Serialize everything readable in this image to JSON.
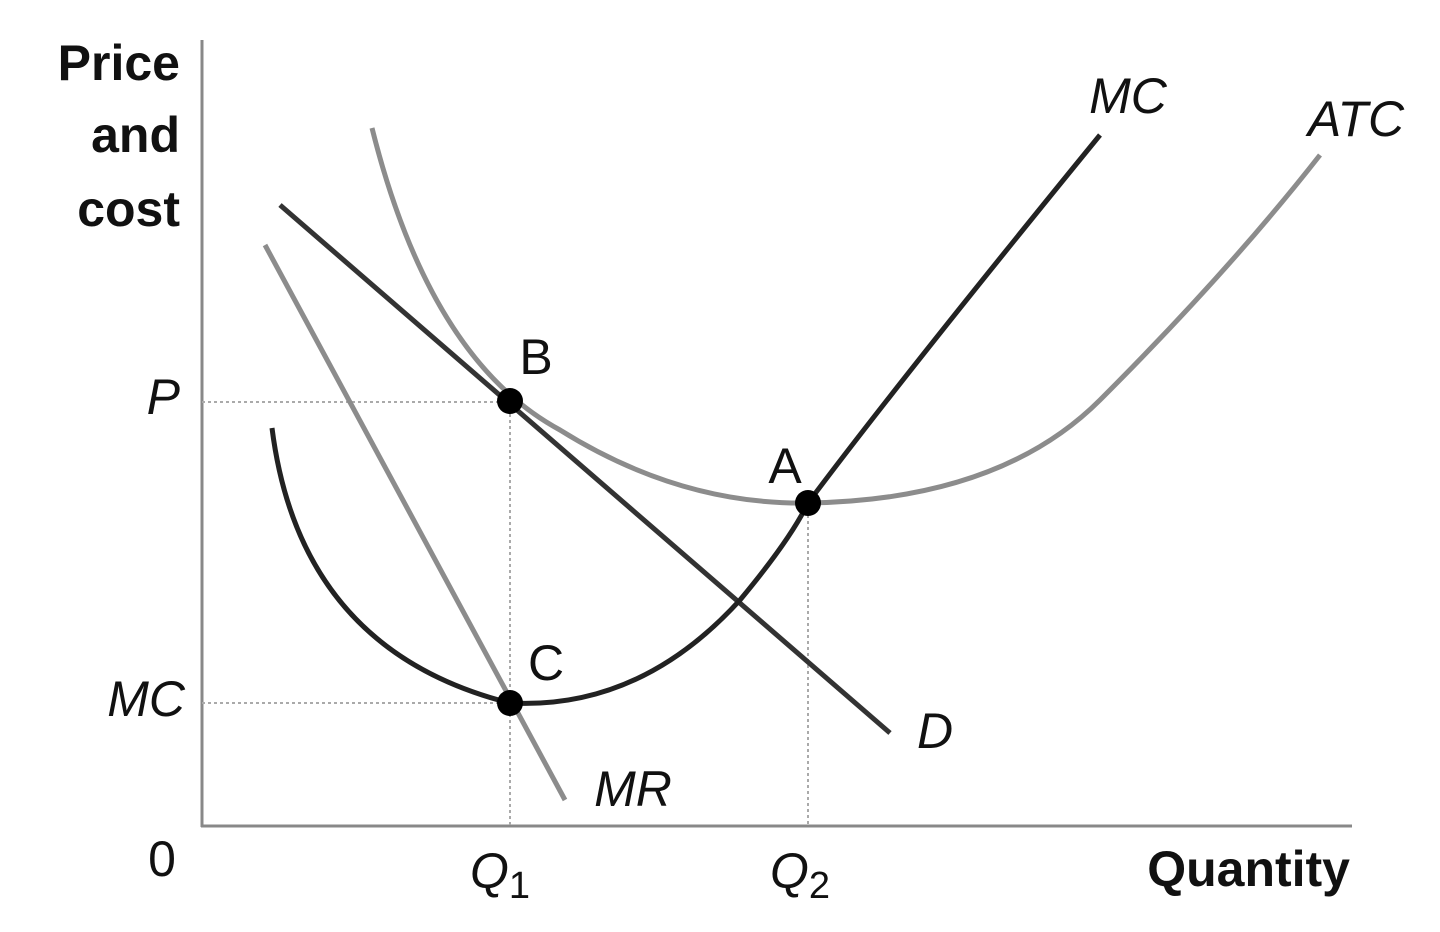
{
  "y_axis": {
    "title_lines": [
      "Price",
      "and",
      "cost"
    ],
    "ticks": [
      "P",
      "MC"
    ]
  },
  "x_axis": {
    "title": "Quantity",
    "origin": "0",
    "ticks": [
      {
        "main": "Q",
        "sub": "1"
      },
      {
        "main": "Q",
        "sub": "2"
      }
    ]
  },
  "curves": {
    "mc": "MC",
    "atc": "ATC",
    "demand": "D",
    "mr": "MR"
  },
  "points": {
    "b": "B",
    "a": "A",
    "c": "C"
  }
}
